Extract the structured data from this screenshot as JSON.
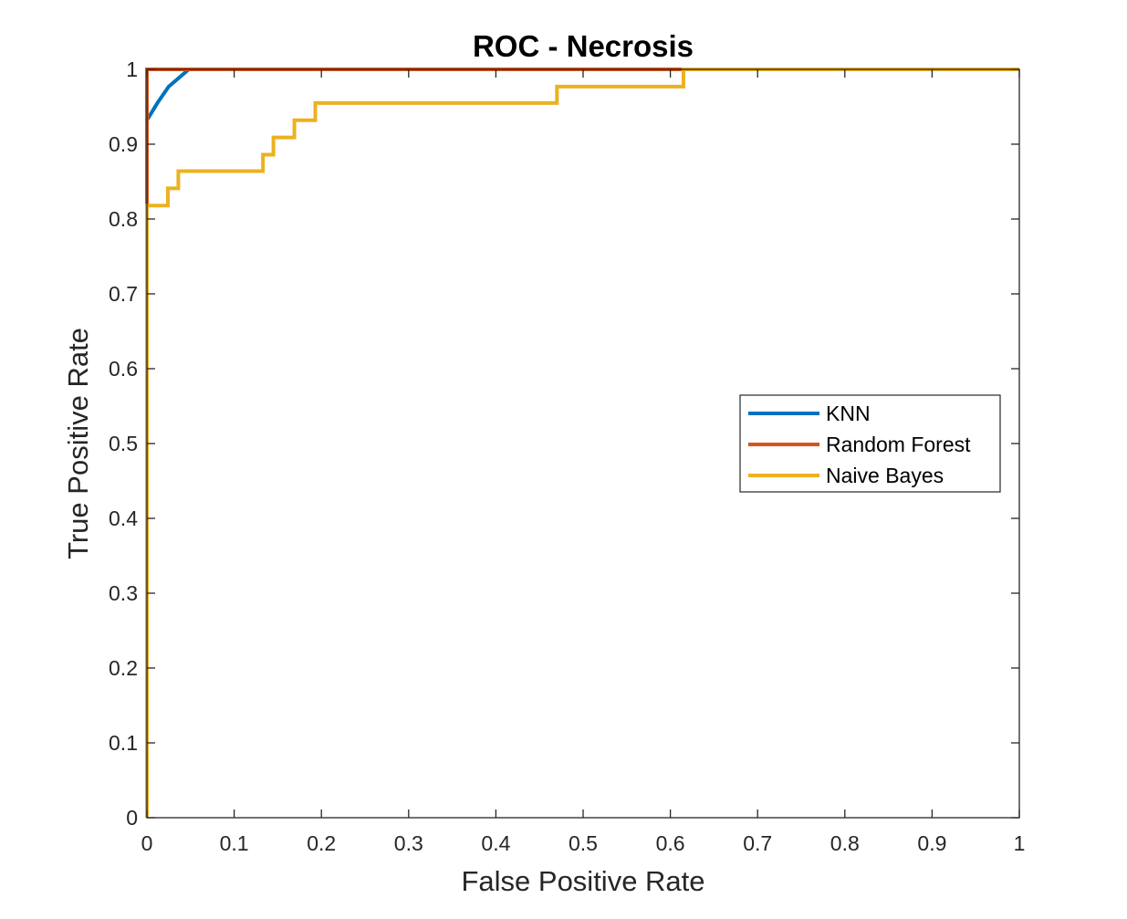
{
  "chart_data": {
    "type": "line",
    "title": "ROC - Necrosis",
    "xlabel": "False Positive Rate",
    "ylabel": "True Positive Rate",
    "xlim": [
      0,
      1
    ],
    "ylim": [
      0,
      1
    ],
    "xticks": [
      0,
      0.1,
      0.2,
      0.3,
      0.4,
      0.5,
      0.6,
      0.7,
      0.8,
      0.9,
      1
    ],
    "yticks": [
      0,
      0.1,
      0.2,
      0.3,
      0.4,
      0.5,
      0.6,
      0.7,
      0.8,
      0.9,
      1
    ],
    "xtick_labels": [
      "0",
      "0.1",
      "0.2",
      "0.3",
      "0.4",
      "0.5",
      "0.6",
      "0.7",
      "0.8",
      "0.9",
      "1"
    ],
    "ytick_labels": [
      "0",
      "0.1",
      "0.2",
      "0.3",
      "0.4",
      "0.5",
      "0.6",
      "0.7",
      "0.8",
      "0.9",
      "1"
    ],
    "grid": false,
    "legend_position": "right",
    "series": [
      {
        "name": "KNN",
        "color": "#0072BD",
        "x": [
          0,
          0,
          0.012,
          0.025,
          0.048,
          1
        ],
        "y": [
          0,
          0.932,
          0.955,
          0.977,
          1.0,
          1.0
        ]
      },
      {
        "name": "Random Forest",
        "color": "#D95319",
        "x": [
          0,
          0,
          0,
          0.615,
          1
        ],
        "y": [
          0,
          0.818,
          1.0,
          1.0,
          1.0
        ]
      },
      {
        "name": "Naive Bayes",
        "color": "#EDB120",
        "x": [
          0,
          0,
          0.024,
          0.024,
          0.036,
          0.036,
          0.133,
          0.133,
          0.145,
          0.145,
          0.169,
          0.169,
          0.193,
          0.193,
          0.47,
          0.47,
          0.615,
          0.615,
          1
        ],
        "y": [
          0,
          0.818,
          0.818,
          0.841,
          0.841,
          0.864,
          0.864,
          0.886,
          0.886,
          0.909,
          0.909,
          0.932,
          0.932,
          0.955,
          0.955,
          0.977,
          0.977,
          1.0,
          1.0
        ]
      }
    ]
  }
}
